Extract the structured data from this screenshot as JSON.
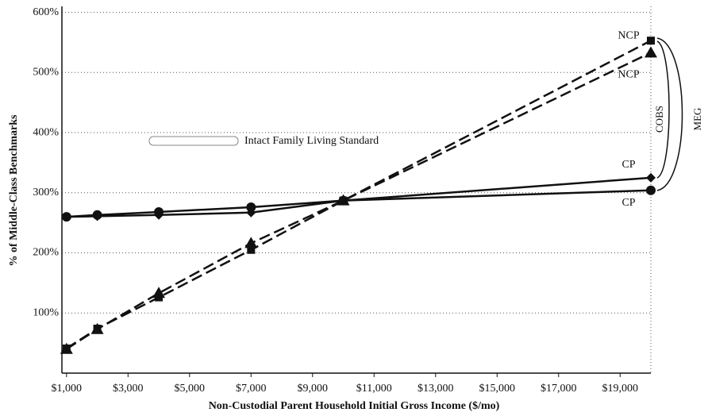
{
  "chart_data": {
    "type": "line",
    "xlabel": "Non-Custodial Parent Household Initial Gross Income ($/mo)",
    "ylabel": "% of Middle-Class Benchmarks",
    "x": [
      1000,
      2000,
      4000,
      7000,
      10000,
      20000
    ],
    "series": [
      {
        "name": "NCP",
        "color": "#111111",
        "dash": true,
        "marker": "square",
        "values": [
          41,
          74,
          126,
          205,
          287,
          553
        ]
      },
      {
        "name": "NCP",
        "color": "#111111",
        "dash": true,
        "marker": "triangle",
        "values": [
          40,
          73,
          133,
          216,
          287,
          533
        ]
      },
      {
        "name": "CP",
        "color": "#111111",
        "dash": false,
        "marker": "diamond",
        "values": [
          260,
          261,
          263,
          267,
          287,
          325
        ]
      },
      {
        "name": "CP",
        "color": "#111111",
        "dash": false,
        "marker": "circle",
        "values": [
          260,
          263,
          268,
          276,
          287,
          304
        ]
      }
    ],
    "xlim": [
      850,
      20000
    ],
    "xticks": [
      {
        "value": 1000,
        "label": "$1,000"
      },
      {
        "value": 3000,
        "label": "$3,000"
      },
      {
        "value": 5000,
        "label": "$5,000"
      },
      {
        "value": 7000,
        "label": "$7,000"
      },
      {
        "value": 9000,
        "label": "$9,000"
      },
      {
        "value": 11000,
        "label": "$11,000"
      },
      {
        "value": 13000,
        "label": "$13,000"
      },
      {
        "value": 15000,
        "label": "$15,000"
      },
      {
        "value": 17000,
        "label": "$17,000"
      },
      {
        "value": 19000,
        "label": "$19,000"
      }
    ],
    "ylim": [
      0,
      610
    ],
    "yticks": [
      {
        "value": 100,
        "label": "100%"
      },
      {
        "value": 200,
        "label": "200%"
      },
      {
        "value": 300,
        "label": "300%"
      },
      {
        "value": 400,
        "label": "400%"
      },
      {
        "value": 500,
        "label": "500%"
      },
      {
        "value": 600,
        "label": "600%"
      }
    ],
    "grid": true,
    "annotations": [
      "Intact Family Living Standard",
      "COBS",
      "MEG"
    ]
  }
}
